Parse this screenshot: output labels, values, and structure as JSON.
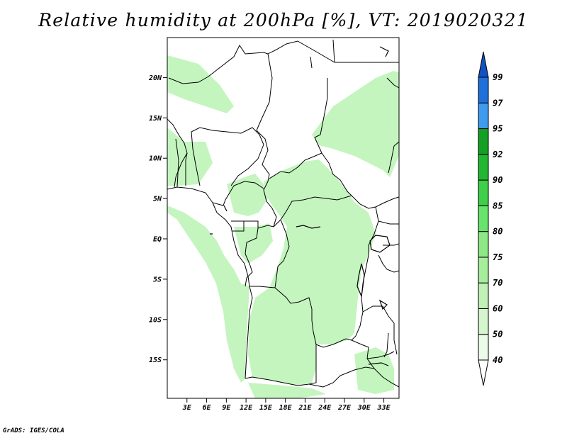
{
  "title": "Relative humidity at 200hPa [%], VT: 2019020321",
  "credit": "GrADS: IGES/COLA",
  "map": {
    "lat_ticks": [
      "20N",
      "15N",
      "10N",
      "5N",
      "EQ",
      "5S",
      "10S",
      "15S"
    ],
    "lon_ticks": [
      "3E",
      "6E",
      "9E",
      "12E",
      "15E",
      "18E",
      "21E",
      "24E",
      "27E",
      "30E",
      "33E"
    ],
    "fill_color": "#c4f5bf",
    "border_color": "#000000"
  },
  "colorbar": {
    "labels": [
      "40",
      "50",
      "60",
      "70",
      "75",
      "80",
      "85",
      "90",
      "92",
      "95",
      "97",
      "99"
    ],
    "colors": [
      "#ffffff",
      "#eafbe7",
      "#d5f6cd",
      "#c0f2b7",
      "#a6ee9b",
      "#8ee985",
      "#68e36b",
      "#3dd048",
      "#22b733",
      "#14a025",
      "#3f9bee",
      "#2070dc",
      "#1252c0"
    ]
  }
}
